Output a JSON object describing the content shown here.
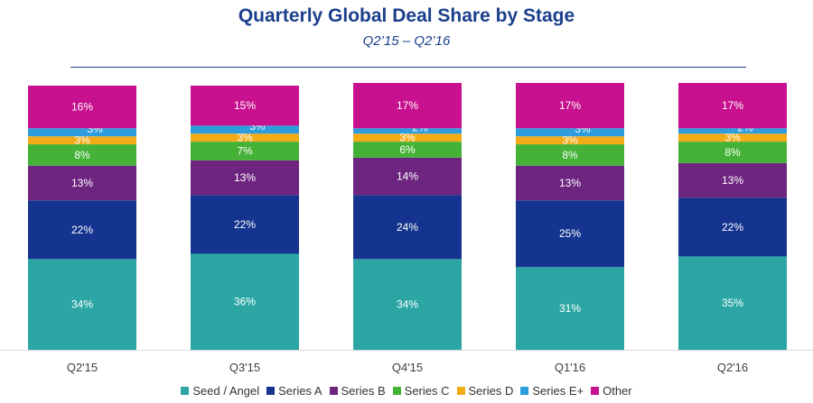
{
  "chart_data": {
    "type": "bar",
    "stacked": true,
    "title": "Quarterly Global Deal Share by Stage",
    "subtitle": "Q2’15 – Q2’16",
    "categories": [
      "Q2'15",
      "Q3'15",
      "Q4'15",
      "Q1'16",
      "Q2'16"
    ],
    "ylim": [
      0,
      100
    ],
    "grid": false,
    "legend_position": "bottom",
    "value_suffix": "%",
    "series": [
      {
        "name": "Seed / Angel",
        "color": "#2ba6a4",
        "values": [
          34,
          36,
          34,
          31,
          35
        ]
      },
      {
        "name": "Series A",
        "color": "#15348f",
        "values": [
          22,
          22,
          24,
          25,
          22
        ]
      },
      {
        "name": "Series B",
        "color": "#6e2580",
        "values": [
          13,
          13,
          14,
          13,
          13
        ]
      },
      {
        "name": "Series C",
        "color": "#44b236",
        "values": [
          8,
          7,
          6,
          8,
          8
        ]
      },
      {
        "name": "Series D",
        "color": "#f4ac16",
        "values": [
          3,
          3,
          3,
          3,
          3
        ]
      },
      {
        "name": "Series E+",
        "color": "#2e9ddd",
        "values": [
          3,
          3,
          2,
          3,
          2
        ]
      },
      {
        "name": "Other",
        "color": "#c8118e",
        "values": [
          16,
          15,
          17,
          17,
          17
        ]
      }
    ]
  }
}
